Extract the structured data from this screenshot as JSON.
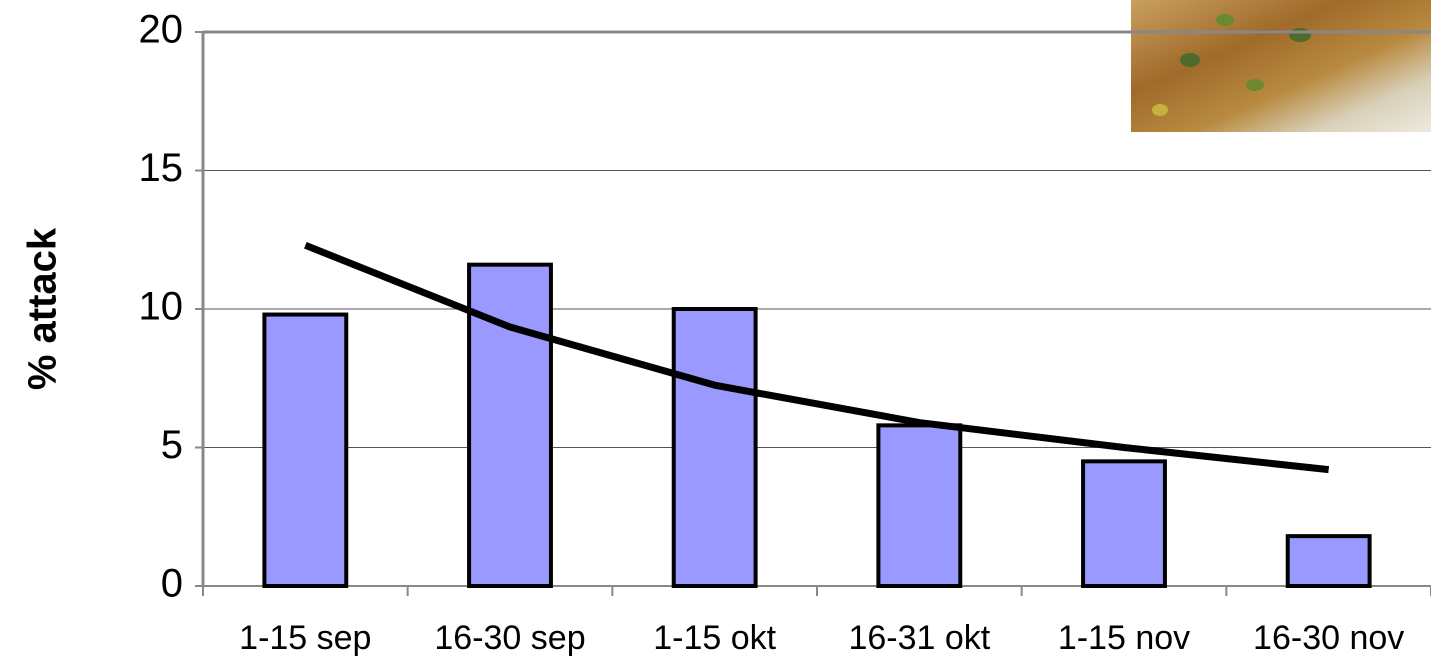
{
  "chart_data": {
    "type": "bar",
    "y_label": "% attack",
    "categories": [
      "1-15 sep",
      "16-30 sep",
      "1-15 okt",
      "16-31 okt",
      "1-15 nov",
      "16-30 nov"
    ],
    "series": [
      {
        "color": "#9999ff",
        "values": [
          9.8,
          11.6,
          10.0,
          5.8,
          4.5,
          1.8
        ]
      },
      {
        "type": "line",
        "color": "#000000",
        "values": [
          12.3,
          9.35,
          7.25,
          5.9,
          5.0,
          4.2
        ]
      }
    ],
    "ylim": [
      0,
      20
    ],
    "yticks": [
      0,
      5,
      10,
      15,
      20
    ],
    "grid": true
  }
}
